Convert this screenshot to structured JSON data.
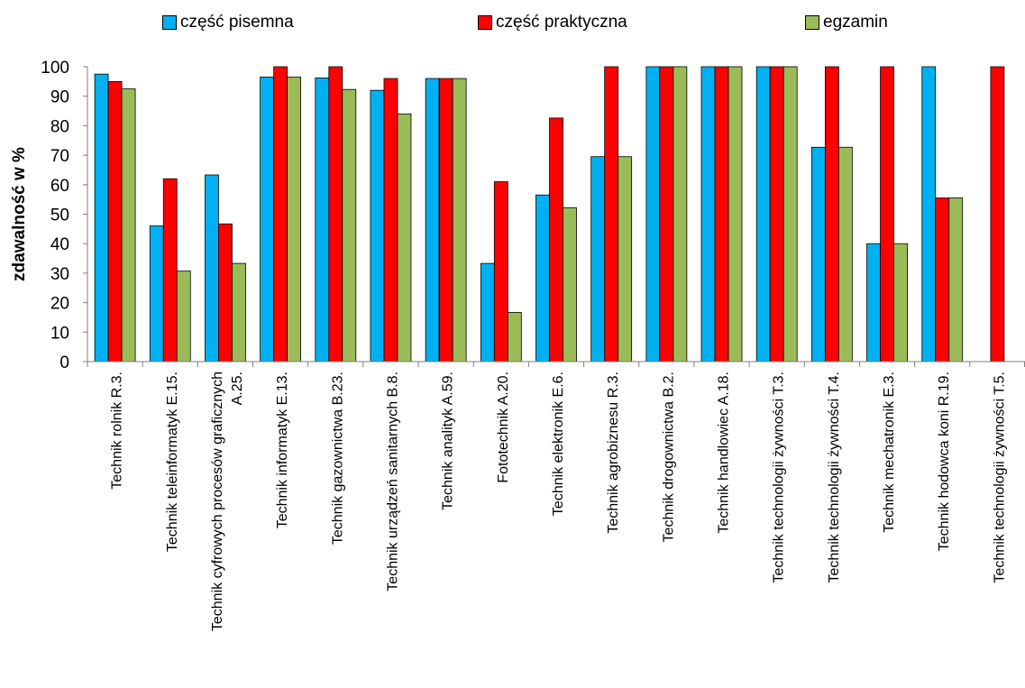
{
  "colors": {
    "part_written": "#00B0F0",
    "part_practical": "#FF0000",
    "exam": "#9BBB59",
    "axis": "#7F7F7F",
    "bar_border": "#000000"
  },
  "chart_data": {
    "type": "bar",
    "title": "",
    "xlabel": "",
    "ylabel": "zdawalność w %",
    "ylim": [
      0,
      100
    ],
    "yticks": [
      0,
      10,
      20,
      30,
      40,
      50,
      60,
      70,
      80,
      90,
      100
    ],
    "grid": false,
    "legend_position": "top",
    "categories": [
      "Technik rolnik R.3.",
      "Technik teleinformatyk E.15.",
      "Technik cyfrowych procesów graficznych A.25.",
      "Technik informatyk E.13.",
      "Technik gazownictwa B.23.",
      "Technik urządzeń sanitarnych B.8.",
      "Technik analityk A.59.",
      "Fototechnik A.20.",
      "Technik elektronik E.6.",
      "Technik agrobiznesu R.3.",
      "Technik drogownictwa B.2.",
      "Technik handlowiec A.18.",
      "Technik technologii żywności T.3.",
      "Technik technologii żywności T.4.",
      "Technik mechatronik E.3.",
      "Technik hodowca koni R.19.",
      "Technik technologii żywności T.5."
    ],
    "category_lines": [
      [
        "Technik rolnik R.3."
      ],
      [
        "Technik teleinformatyk E.15."
      ],
      [
        "Technik cyfrowych procesów graficznych",
        "A.25."
      ],
      [
        "Technik informatyk E.13."
      ],
      [
        "Technik gazownictwa B.23."
      ],
      [
        "Technik urządzeń sanitarnych B.8."
      ],
      [
        "Technik analityk A.59."
      ],
      [
        "Fototechnik A.20."
      ],
      [
        "Technik elektronik E.6."
      ],
      [
        "Technik agrobiznesu R.3."
      ],
      [
        "Technik drogownictwa B.2."
      ],
      [
        "Technik handlowiec A.18."
      ],
      [
        "Technik technologii żywności T.3."
      ],
      [
        "Technik technologii żywności T.4."
      ],
      [
        "Technik mechatronik E.3."
      ],
      [
        "Technik hodowca koni R.19."
      ],
      [
        "Technik technologii żywności T.5."
      ]
    ],
    "series": [
      {
        "name": "część pisemna",
        "color_key": "part_written",
        "values": [
          97.5,
          46,
          63.3,
          96.5,
          96.2,
          92,
          96,
          33.3,
          56.5,
          69.5,
          100,
          100,
          100,
          72.7,
          40,
          100,
          null
        ]
      },
      {
        "name": "część praktyczna",
        "color_key": "part_practical",
        "values": [
          95,
          62,
          46.7,
          100,
          100,
          96,
          96,
          61,
          82.6,
          100,
          100,
          100,
          100,
          100,
          100,
          55.5,
          100
        ]
      },
      {
        "name": "egzamin",
        "color_key": "exam",
        "values": [
          92.5,
          30.7,
          33.3,
          96.5,
          92.3,
          84,
          96,
          16.7,
          52.2,
          69.5,
          100,
          100,
          100,
          72.7,
          40,
          55.5,
          null
        ]
      }
    ]
  }
}
